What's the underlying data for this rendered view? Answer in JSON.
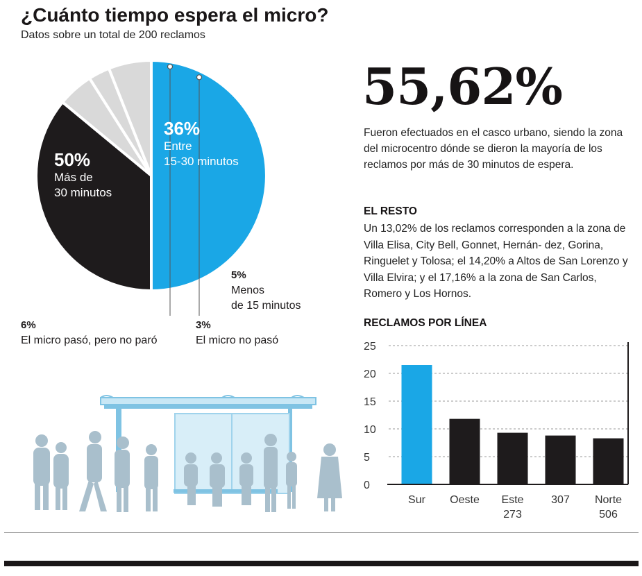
{
  "header": {
    "title": "¿Cuánto tiempo espera el micro?",
    "subtitle": "Datos sobre un total de 200 reclamos"
  },
  "highlight": {
    "value": "55,62%",
    "description": "Fueron efectuados en el casco urbano, siendo la zona del microcentro dónde se dieron la mayoría de los reclamos por más de 30 minutos de espera."
  },
  "resto": {
    "title": "EL RESTO",
    "text": "Un 13,02% de los reclamos corresponden a la zona de Villa Elisa, City Bell, Gonnet, Hernán- dez, Gorina, Ringuelet y Tolosa; el 14,20% a Altos de San Lorenzo y Villa Elvira; y el 17,16% a la zona de San Carlos, Romero y Los Hornos."
  },
  "pie_labels": {
    "s50_pct": "50%",
    "s50_l1": "Más de",
    "s50_l2": "30 minutos",
    "s36_pct": "36%",
    "s36_l1": "Entre",
    "s36_l2": "15-30 minutos",
    "s5_pct": "5%",
    "s5_l1": "Menos",
    "s5_l2": "de 15 minutos",
    "s6_pct": "6%",
    "s6_l1": "El micro pasó, pero no paró",
    "s3_pct": "3%",
    "s3_l1": "El micro no pasó"
  },
  "colors": {
    "blue": "#1aa7e6",
    "black": "#1e1b1c",
    "gray": "#d9d9d9",
    "silhouette": "#a9bfcc",
    "shelter": "#9fd3ec"
  },
  "chart_data": [
    {
      "type": "pie",
      "title": "¿Cuánto tiempo espera el micro?",
      "subtitle": "Datos sobre un total de 200 reclamos",
      "slices": [
        {
          "label": "Más de 30 minutos",
          "value": 50,
          "color": "#1aa7e6"
        },
        {
          "label": "Entre 15-30 minutos",
          "value": 36,
          "color": "#1e1b1c"
        },
        {
          "label": "Menos de 15 minutos",
          "value": 5,
          "color": "#d9d9d9"
        },
        {
          "label": "El micro no pasó",
          "value": 3,
          "color": "#d9d9d9"
        },
        {
          "label": "El micro pasó, pero no paró",
          "value": 6,
          "color": "#d9d9d9"
        }
      ]
    },
    {
      "type": "bar",
      "title": "RECLAMOS POR LÍNEA",
      "categories": [
        "Sur",
        "Oeste",
        "Este 273",
        "307",
        "Norte 506"
      ],
      "category_lines": [
        [
          "Sur"
        ],
        [
          "Oeste"
        ],
        [
          "Este",
          "273"
        ],
        [
          "307"
        ],
        [
          "Norte",
          "506"
        ]
      ],
      "values": [
        21.5,
        11.8,
        9.3,
        8.8,
        8.3
      ],
      "colors": [
        "#1aa7e6",
        "#1e1b1c",
        "#1e1b1c",
        "#1e1b1c",
        "#1e1b1c"
      ],
      "ylim": [
        0,
        25
      ],
      "yticks": [
        "0",
        "5",
        "10",
        "15",
        "20",
        "25"
      ],
      "grid": true
    }
  ]
}
